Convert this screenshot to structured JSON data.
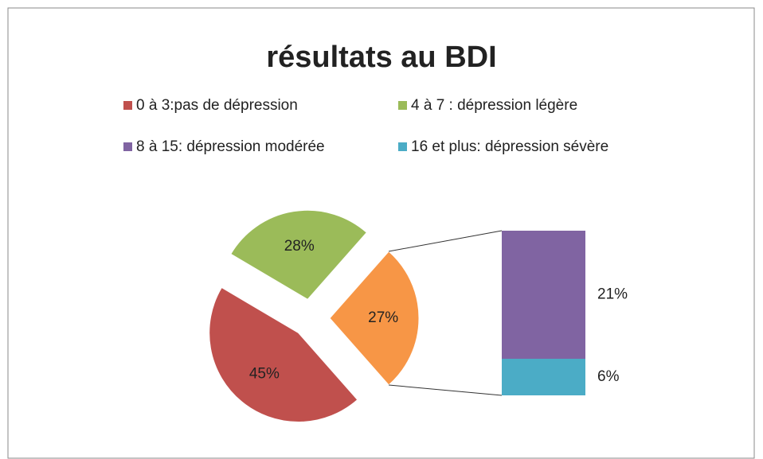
{
  "chart_data": {
    "type": "pie",
    "title": "résultats au BDI",
    "categories": [
      "0 à 3:pas de dépression",
      "4 à 7 : dépression légère",
      "8 à 15: dépression modérée",
      "16 et plus: dépression sévère"
    ],
    "colors": [
      "#c0504d",
      "#9bbb59",
      "#8064a2",
      "#4bacc6"
    ],
    "pie": {
      "values": [
        45,
        28,
        27
      ],
      "value_labels": [
        "45%",
        "28%",
        "27%"
      ],
      "colors": [
        "#c0504d",
        "#9bbb59",
        "#f79646"
      ]
    },
    "bar": {
      "values": [
        21,
        6
      ],
      "value_labels": [
        "21%",
        "6%"
      ],
      "colors": [
        "#8064a2",
        "#4bacc6"
      ]
    }
  }
}
